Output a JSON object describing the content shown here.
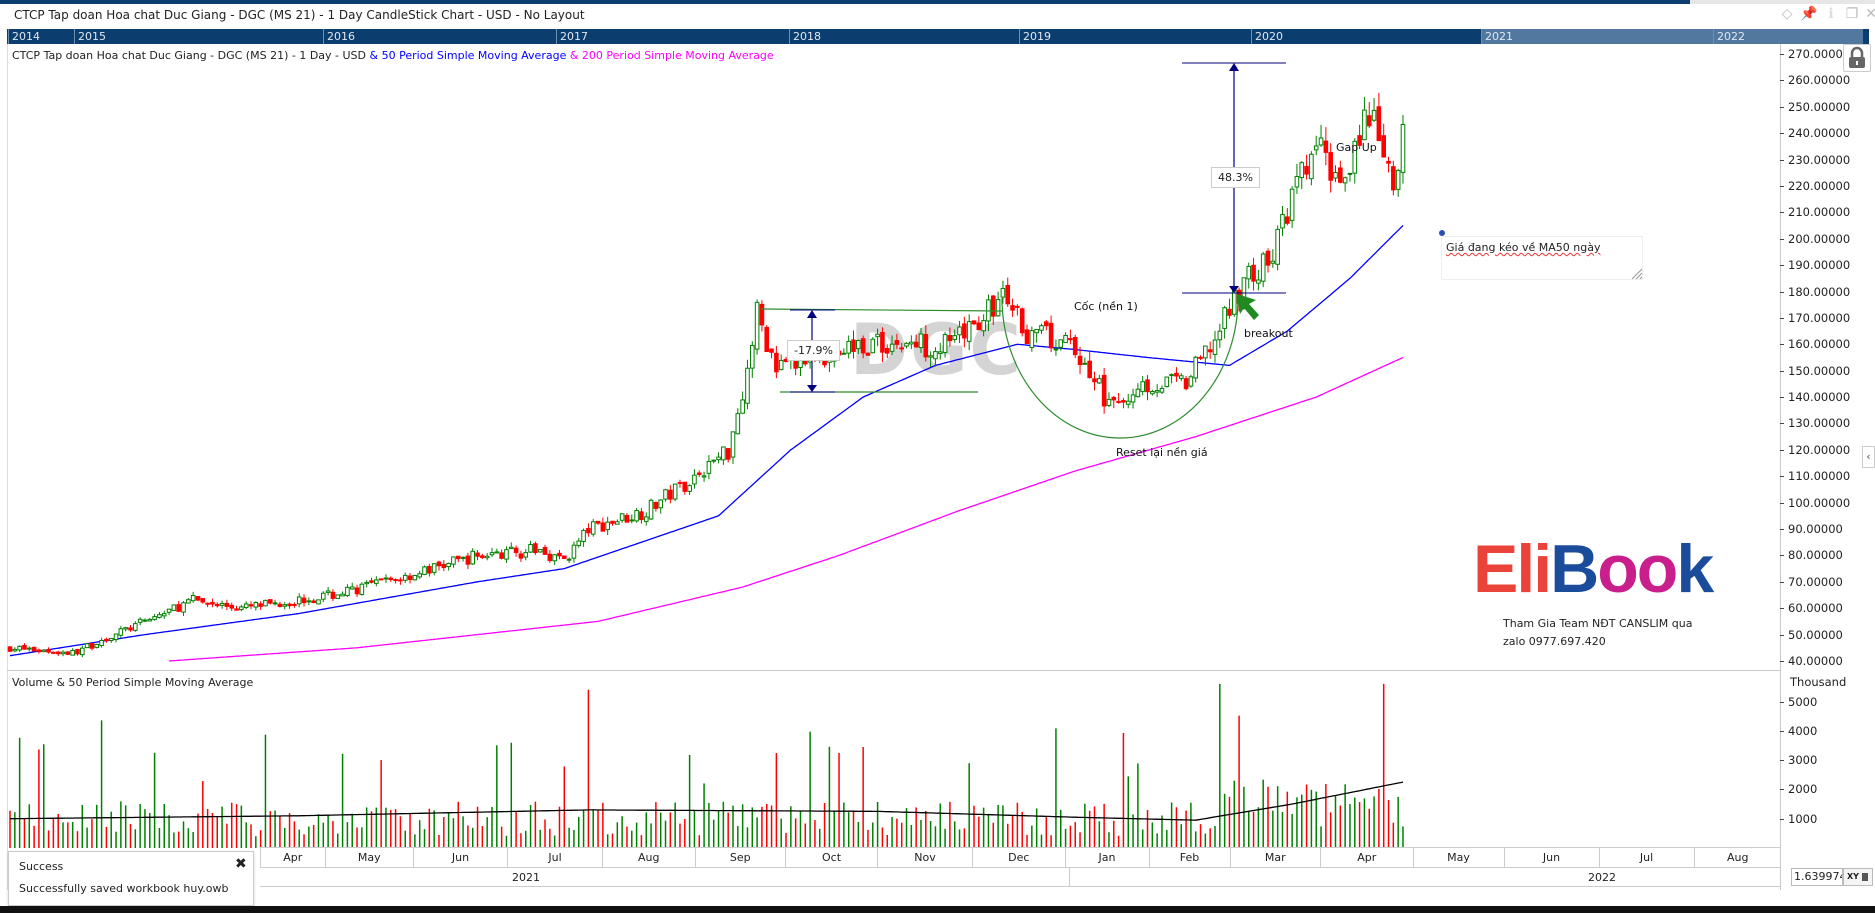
{
  "window": {
    "title": "CTCP Tap doan Hoa chat Duc Giang - DGC (MS 21) - 1 Day CandleStick Chart - USD - No Layout",
    "icons": [
      "diamond-icon",
      "pin-icon",
      "info-icon",
      "restore-icon",
      "close-icon"
    ]
  },
  "navigator": {
    "years": [
      "2014",
      "2015",
      "2016",
      "2017",
      "2018",
      "2019",
      "2020",
      "2021",
      "2022"
    ]
  },
  "chart": {
    "title_main": "CTCP Tap doan Hoa chat Duc Giang - DGC (MS 21) - 1 Day - USD",
    "title_ma50": " & 50 Period Simple Moving Average",
    "title_ma200": " & 200 Period Simple Moving Average",
    "watermark": "DGC",
    "colors": {
      "up": "#008000",
      "down": "#ff0000",
      "ma50": "#0000ff",
      "ma200": "#ff00ff",
      "annotation": "#000080"
    }
  },
  "price_axis": [
    "270.00000",
    "260.00000",
    "250.00000",
    "240.00000",
    "230.00000",
    "220.00000",
    "210.00000",
    "200.00000",
    "190.00000",
    "180.00000",
    "170.00000",
    "160.00000",
    "150.00000",
    "140.00000",
    "130.00000",
    "120.00000",
    "110.00000",
    "100.00000",
    "90.00000",
    "80.00000",
    "70.00000",
    "60.00000",
    "50.00000",
    "40.00000"
  ],
  "volume": {
    "label": "Volume & 50 Period Simple Moving Average",
    "unit": "Thousand",
    "axis": [
      "5000",
      "4000",
      "3000",
      "2000",
      "1000"
    ]
  },
  "time_axis": {
    "months": [
      "Apr",
      "May",
      "Jun",
      "Jul",
      "Aug",
      "Sep",
      "Oct",
      "Nov",
      "Dec",
      "Jan",
      "Feb",
      "Mar",
      "Apr",
      "May",
      "Jun",
      "Jul",
      "Aug"
    ],
    "years": [
      "2021",
      "2022"
    ]
  },
  "annotations": {
    "pct_drop": "-17.9%",
    "pct_rise": "48.3%",
    "cup": "Cốc (nền 1)",
    "breakout": "breakout",
    "reset": "Reset lại nền giá",
    "gap": "Gap Up",
    "note": "Giá đang kéo về MA50 ngày"
  },
  "logo": {
    "text": "EliBook",
    "caption1": "Tham Gia Team NĐT CANSLIM qua",
    "caption2": "zalo 0977.697.420"
  },
  "xy": {
    "value": "1.6399740",
    "button": "XY"
  },
  "toast": {
    "title": "Success",
    "message": "Successfully saved workbook huy.owb"
  },
  "chart_data": {
    "type": "candlestick",
    "days": 290,
    "close_path": [
      [
        0,
        45
      ],
      [
        13,
        43
      ],
      [
        28,
        55
      ],
      [
        38,
        63
      ],
      [
        48,
        60
      ],
      [
        67,
        65
      ],
      [
        82,
        72
      ],
      [
        97,
        80
      ],
      [
        110,
        82
      ],
      [
        115,
        78
      ],
      [
        120,
        90
      ],
      [
        132,
        97
      ],
      [
        142,
        110
      ],
      [
        149,
        120
      ],
      [
        153,
        150
      ],
      [
        155,
        172
      ],
      [
        159,
        150
      ],
      [
        167,
        155
      ],
      [
        177,
        160
      ],
      [
        189,
        160
      ],
      [
        196,
        160
      ],
      [
        206,
        178
      ],
      [
        211,
        165
      ],
      [
        221,
        158
      ],
      [
        229,
        135
      ],
      [
        234,
        145
      ],
      [
        244,
        145
      ],
      [
        251,
        165
      ],
      [
        256,
        185
      ],
      [
        261,
        190
      ],
      [
        266,
        215
      ],
      [
        271,
        235
      ],
      [
        276,
        222
      ],
      [
        281,
        245
      ],
      [
        284,
        240
      ],
      [
        287,
        215
      ],
      [
        289,
        240
      ]
    ],
    "ma50_path": [
      [
        0,
        42
      ],
      [
        28,
        50
      ],
      [
        60,
        58
      ],
      [
        97,
        70
      ],
      [
        115,
        75
      ],
      [
        147,
        95
      ],
      [
        162,
        120
      ],
      [
        177,
        140
      ],
      [
        192,
        152
      ],
      [
        209,
        160
      ],
      [
        221,
        158
      ],
      [
        236,
        155
      ],
      [
        253,
        152
      ],
      [
        265,
        165
      ],
      [
        278,
        185
      ],
      [
        289,
        205
      ]
    ],
    "ma200_path": [
      [
        33,
        40
      ],
      [
        72,
        45
      ],
      [
        122,
        55
      ],
      [
        152,
        68
      ],
      [
        172,
        80
      ],
      [
        197,
        97
      ],
      [
        221,
        112
      ],
      [
        246,
        125
      ],
      [
        271,
        140
      ],
      [
        289,
        155
      ]
    ],
    "volume_ma_path": [
      [
        0,
        1000
      ],
      [
        60,
        1100
      ],
      [
        120,
        1300
      ],
      [
        180,
        1250
      ],
      [
        221,
        1050
      ],
      [
        246,
        950
      ],
      [
        266,
        1500
      ],
      [
        289,
        2250
      ]
    ]
  }
}
